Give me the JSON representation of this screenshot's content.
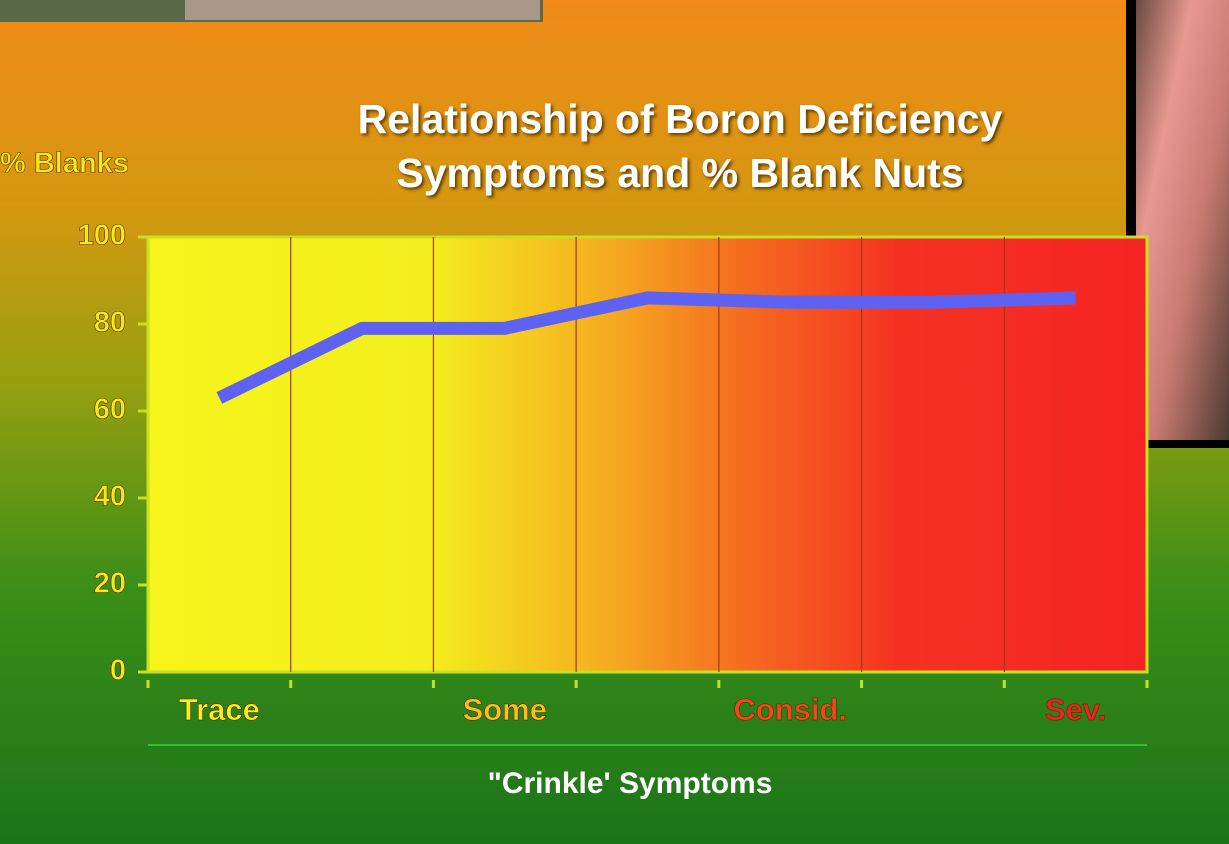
{
  "chart_data": {
    "type": "line",
    "title": "Relationship of Boron Deficiency Symptoms and % Blank Nuts",
    "y_label": "% Blanks",
    "x_label": "\"Crinkle' Symptoms",
    "categories": [
      "Trace",
      null,
      "Some",
      null,
      "Consid.",
      null,
      "Sev."
    ],
    "category_colors": [
      "#f7f020",
      null,
      "#f7c020",
      null,
      "#f04818",
      null,
      "#f02020"
    ],
    "series": [
      {
        "color": "#5d62f2",
        "values": [
          63,
          79,
          79,
          86,
          85,
          85,
          86
        ]
      }
    ],
    "ylim": [
      0,
      100
    ],
    "yticks": [
      0,
      20,
      40,
      60,
      80,
      100
    ],
    "grid": true
  }
}
